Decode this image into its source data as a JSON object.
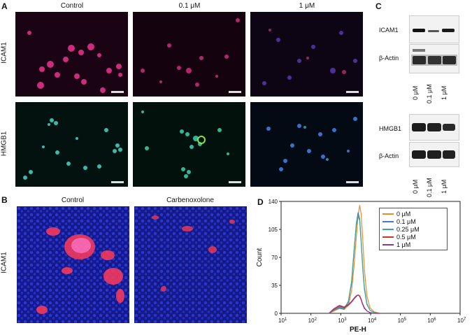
{
  "panels": {
    "a": "A",
    "b": "B",
    "c": "C",
    "d": "D"
  },
  "panel_a": {
    "columns": [
      "Control",
      "0.1 μM",
      "1 μM"
    ],
    "rows": [
      "ICAM1",
      "HMGB1"
    ]
  },
  "panel_b": {
    "columns": [
      "Control",
      "Carbenoxolone"
    ],
    "row": "ICAM1"
  },
  "panel_c": {
    "blots": [
      {
        "top_label": "ICAM1",
        "bottom_label": "β-Actin"
      },
      {
        "top_label": "HMGB1",
        "bottom_label": "β-Actin"
      }
    ],
    "lanes": [
      "0 μM",
      "0.1 μM",
      "1 μM"
    ]
  },
  "chart_data": {
    "type": "line",
    "xlabel": "PE-H",
    "ylabel": "Count",
    "xscale": "log",
    "xlim": [
      10,
      10000000
    ],
    "ylim": [
      0,
      140
    ],
    "yticks": [
      0,
      35,
      70,
      105,
      140
    ],
    "xticks": [
      "10^1",
      "10^2",
      "10^3",
      "10^4",
      "10^5",
      "10^6",
      "10^7"
    ],
    "legend_position": "top-right",
    "series": [
      {
        "name": "0  μM",
        "color": "#f08a24",
        "x": [
          400,
          600,
          900,
          1300,
          1800,
          2300,
          2800,
          3300,
          3800,
          4300,
          4800,
          5400,
          6200,
          7500,
          9500,
          13000,
          20000
        ],
        "y": [
          0,
          3,
          6,
          5,
          10,
          28,
          60,
          95,
          122,
          135,
          125,
          95,
          55,
          22,
          7,
          2,
          0
        ]
      },
      {
        "name": "0.1  μM",
        "color": "#3a7fc1",
        "x": [
          400,
          600,
          900,
          1300,
          1800,
          2300,
          2800,
          3300,
          3800,
          4300,
          4800,
          5400,
          6200,
          7500,
          9500,
          13000,
          20000
        ],
        "y": [
          0,
          4,
          7,
          5,
          14,
          38,
          78,
          112,
          126,
          118,
          92,
          60,
          32,
          12,
          4,
          1,
          0
        ]
      },
      {
        "name": "0.25  μM",
        "color": "#3aa89a",
        "x": [
          400,
          600,
          900,
          1300,
          1800,
          2300,
          2800,
          3300,
          3800,
          4300,
          4800,
          5400,
          6200,
          7500,
          9500,
          13000,
          20000
        ],
        "y": [
          0,
          4,
          8,
          6,
          15,
          40,
          80,
          110,
          122,
          116,
          90,
          58,
          30,
          11,
          4,
          1,
          0
        ]
      },
      {
        "name": "0.5  μM",
        "color": "#d4322a",
        "x": [
          400,
          600,
          900,
          1300,
          1800,
          2300,
          2800,
          3300,
          3800,
          4300,
          4800,
          5400,
          6200,
          7500,
          9500,
          13000,
          20000
        ],
        "y": [
          0,
          5,
          9,
          7,
          10,
          14,
          18,
          21,
          23,
          22,
          18,
          12,
          7,
          3,
          1,
          0,
          0
        ]
      },
      {
        "name": "1  μM",
        "color": "#8e3a91",
        "x": [
          400,
          600,
          900,
          1300,
          1800,
          2300,
          2800,
          3300,
          3800,
          4300,
          4800,
          5400,
          6200,
          7500,
          9500,
          13000,
          20000
        ],
        "y": [
          0,
          6,
          10,
          8,
          11,
          15,
          19,
          22,
          23,
          21,
          17,
          11,
          6,
          3,
          1,
          0,
          0
        ]
      }
    ]
  }
}
